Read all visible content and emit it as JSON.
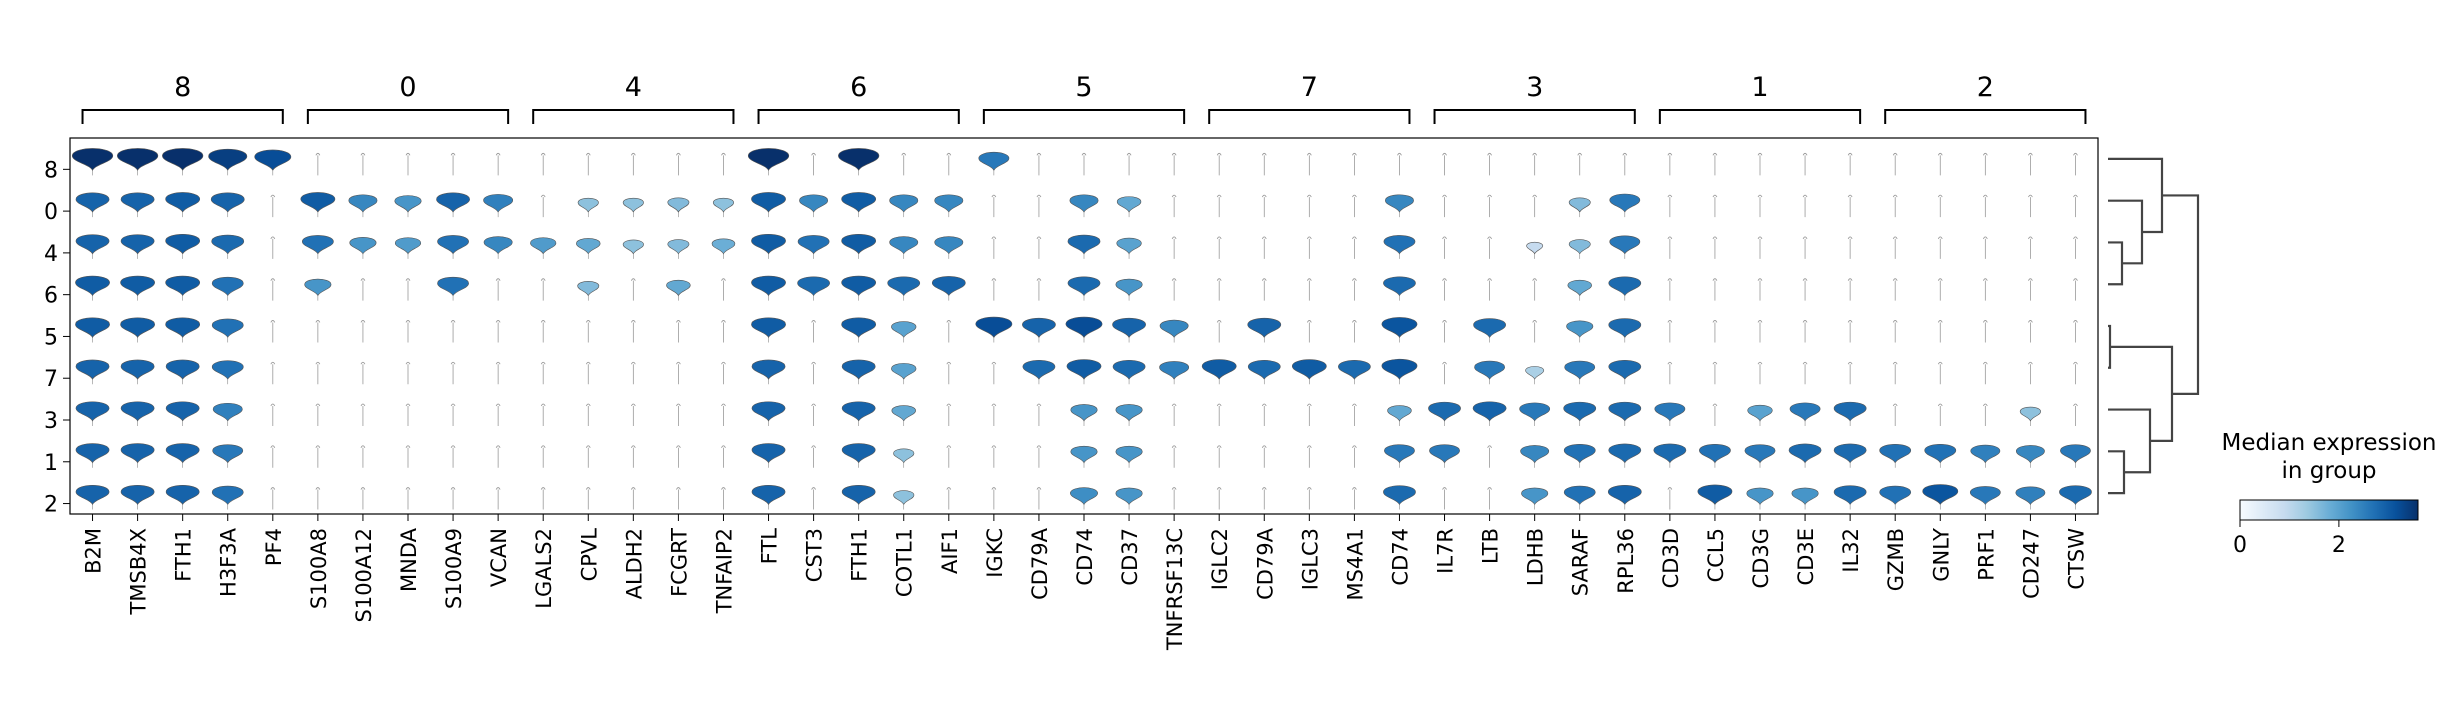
{
  "chart_data": {
    "type": "stacked-violin",
    "groups": [
      "8",
      "0",
      "4",
      "6",
      "5",
      "7",
      "3",
      "1",
      "2"
    ],
    "gene_groups": [
      {
        "label": "8",
        "genes": [
          "B2M",
          "TMSB4X",
          "FTH1",
          "H3F3A",
          "PF4"
        ]
      },
      {
        "label": "0",
        "genes": [
          "S100A8",
          "S100A12",
          "MNDA",
          "S100A9",
          "VCAN"
        ]
      },
      {
        "label": "4",
        "genes": [
          "LGALS2",
          "CPVL",
          "ALDH2",
          "FCGRT",
          "TNFAIP2"
        ]
      },
      {
        "label": "6",
        "genes": [
          "FTL",
          "CST3",
          "FTH1",
          "COTL1",
          "AIF1"
        ]
      },
      {
        "label": "5",
        "genes": [
          "IGKC",
          "CD79A",
          "CD74",
          "CD37",
          "TNFRSF13C"
        ]
      },
      {
        "label": "7",
        "genes": [
          "IGLC2",
          "CD79A",
          "IGLC3",
          "MS4A1",
          "CD74"
        ]
      },
      {
        "label": "3",
        "genes": [
          "IL7R",
          "LTB",
          "LDHB",
          "SARAF",
          "RPL36"
        ]
      },
      {
        "label": "1",
        "genes": [
          "CD3D",
          "CCL5",
          "CD3G",
          "CD3E",
          "IL32"
        ]
      },
      {
        "label": "2",
        "genes": [
          "GZMB",
          "GNLY",
          "PRF1",
          "CD247",
          "CTSW"
        ]
      }
    ],
    "median_expression": [
      [
        3.6,
        3.6,
        3.6,
        3.4,
        3.2,
        0,
        0,
        0,
        0,
        0,
        0,
        0,
        0,
        0,
        0,
        3.6,
        0,
        3.6,
        0,
        0,
        2.6,
        0,
        0,
        0,
        0,
        0,
        0,
        0,
        0,
        0,
        0,
        0,
        0,
        0,
        0,
        0,
        0,
        0,
        0,
        0,
        0,
        0,
        0,
        0,
        0
      ],
      [
        2.9,
        2.9,
        3.0,
        2.9,
        0,
        3.0,
        2.4,
        2.2,
        2.9,
        2.5,
        0,
        1.5,
        1.5,
        1.6,
        1.5,
        3.0,
        2.4,
        3.0,
        2.4,
        2.4,
        0,
        0,
        2.4,
        1.9,
        0,
        0,
        0,
        0,
        0,
        2.4,
        0,
        0,
        0,
        1.6,
        2.6,
        0,
        0,
        0,
        0,
        0,
        0,
        0,
        0,
        0,
        0
      ],
      [
        2.9,
        2.9,
        3.0,
        2.8,
        0,
        2.7,
        2.2,
        2.1,
        2.7,
        2.4,
        2.1,
        1.9,
        1.5,
        1.6,
        1.8,
        3.0,
        2.7,
        3.0,
        2.4,
        2.4,
        0,
        0,
        2.8,
        2.0,
        0,
        0,
        0,
        0,
        0,
        2.7,
        0,
        0,
        0.9,
        1.6,
        2.6,
        0,
        0,
        0,
        0,
        0,
        0,
        0,
        0,
        0,
        0
      ],
      [
        3.0,
        3.0,
        3.0,
        2.7,
        0,
        2.2,
        0,
        0,
        2.7,
        0,
        0,
        1.6,
        0,
        1.9,
        0,
        3.0,
        2.8,
        3.0,
        2.8,
        2.9,
        0,
        0,
        2.8,
        2.2,
        0,
        0,
        0,
        0,
        0,
        2.8,
        0,
        0,
        0,
        1.9,
        2.8,
        0,
        0,
        0,
        0,
        0,
        0,
        0,
        0,
        0,
        0
      ],
      [
        3.0,
        3.0,
        3.0,
        2.7,
        0,
        0,
        0,
        0,
        0,
        0,
        0,
        0,
        0,
        0,
        0,
        3.0,
        0,
        3.0,
        2.0,
        0,
        3.2,
        2.9,
        3.2,
        2.9,
        2.4,
        0,
        2.9,
        0,
        0,
        3.1,
        0,
        2.8,
        0,
        2.2,
        2.8,
        0,
        0,
        0,
        0,
        0,
        0,
        0,
        0,
        0,
        0
      ],
      [
        2.9,
        2.9,
        2.9,
        2.7,
        0,
        0,
        0,
        0,
        0,
        0,
        0,
        0,
        0,
        0,
        0,
        2.9,
        0,
        2.9,
        2.0,
        0,
        0,
        2.8,
        3.0,
        2.8,
        2.5,
        3.0,
        2.8,
        3.0,
        2.8,
        3.1,
        0,
        2.6,
        1.2,
        2.6,
        2.8,
        0,
        0,
        0,
        0,
        0,
        0,
        0,
        0,
        0,
        0
      ],
      [
        2.9,
        2.9,
        2.9,
        2.5,
        0,
        0,
        0,
        0,
        0,
        0,
        0,
        0,
        0,
        0,
        0,
        2.9,
        0,
        2.9,
        1.9,
        0,
        0,
        0,
        2.2,
        2.2,
        0,
        0,
        0,
        0,
        0,
        1.9,
        2.8,
        2.9,
        2.6,
        2.8,
        2.8,
        2.6,
        0,
        2.0,
        2.6,
        2.8,
        0,
        0,
        0,
        1.5,
        0
      ],
      [
        2.9,
        2.9,
        2.9,
        2.6,
        0,
        0,
        0,
        0,
        0,
        0,
        0,
        0,
        0,
        0,
        0,
        2.9,
        0,
        2.9,
        1.5,
        0,
        0,
        0,
        2.2,
        2.2,
        0,
        0,
        0,
        0,
        0,
        2.6,
        2.6,
        0,
        2.4,
        2.7,
        2.8,
        2.8,
        2.7,
        2.6,
        2.8,
        2.8,
        2.7,
        2.7,
        2.5,
        2.4,
        2.6
      ],
      [
        2.9,
        2.9,
        2.9,
        2.7,
        0,
        0,
        0,
        0,
        0,
        0,
        0,
        0,
        0,
        0,
        0,
        2.9,
        0,
        2.9,
        1.5,
        0,
        0,
        0,
        2.3,
        2.2,
        0,
        0,
        0,
        0,
        0,
        2.8,
        0,
        0,
        2.2,
        2.7,
        2.9,
        0,
        3.0,
        2.2,
        2.2,
        2.8,
        2.7,
        3.1,
        2.6,
        2.5,
        2.8
      ]
    ],
    "color_scale": {
      "label": "Median expression\nin group",
      "min": 0,
      "max": 3.6,
      "ticks": [
        0,
        2
      ],
      "colors": [
        "#f7fbff",
        "#deebf7",
        "#c6dbef",
        "#9ecae1",
        "#6baed6",
        "#4292c6",
        "#2171b5",
        "#08519c",
        "#08306b"
      ]
    },
    "dendrogram": true,
    "legend_position": "right"
  }
}
